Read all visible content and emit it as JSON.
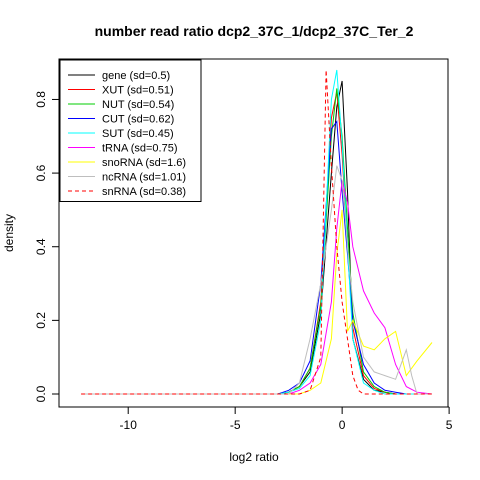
{
  "chart_data": {
    "type": "line",
    "title": "number read ratio dcp2_37C_1/dcp2_37C_Ter_2",
    "xlabel": "log2 ratio",
    "ylabel": "density",
    "xlim": [
      -12.3,
      4.2
    ],
    "ylim": [
      0,
      0.88
    ],
    "x_ticks": [
      -10,
      -5,
      0,
      5
    ],
    "x_tick_labels": [
      "-10",
      "-5",
      "0",
      "5"
    ],
    "y_ticks": [
      0.0,
      0.2,
      0.4,
      0.6,
      0.8
    ],
    "y_tick_labels": [
      "0.0",
      "0.2",
      "0.4",
      "0.6",
      "0.8"
    ],
    "legend_position": "top-left",
    "series": [
      {
        "name": "gene (sd=0.5)",
        "color": "#000000",
        "dash": false,
        "x": [
          -12.2,
          -3.0,
          -2.5,
          -2.0,
          -1.5,
          -1.0,
          -0.5,
          -0.25,
          0.0,
          0.25,
          0.5,
          1.0,
          1.5,
          2.0,
          2.5,
          3.0,
          3.5,
          4.2
        ],
        "y": [
          0.0,
          0.0,
          0.005,
          0.02,
          0.06,
          0.22,
          0.6,
          0.78,
          0.85,
          0.55,
          0.15,
          0.04,
          0.01,
          0.005,
          0.0,
          0.0,
          0.0,
          0.0
        ]
      },
      {
        "name": "XUT (sd=0.51)",
        "color": "#ff0000",
        "dash": false,
        "x": [
          -12.2,
          -3.0,
          -2.5,
          -2.0,
          -1.5,
          -1.0,
          -0.5,
          -0.25,
          0.0,
          0.25,
          0.5,
          1.0,
          1.5,
          2.0,
          2.5,
          3.0,
          4.2
        ],
        "y": [
          0.0,
          0.0,
          0.005,
          0.02,
          0.07,
          0.25,
          0.75,
          0.82,
          0.65,
          0.4,
          0.18,
          0.05,
          0.015,
          0.005,
          0.0,
          0.0,
          0.0
        ]
      },
      {
        "name": "NUT (sd=0.54)",
        "color": "#00cc00",
        "dash": false,
        "x": [
          -12.2,
          -3.0,
          -2.5,
          -2.0,
          -1.5,
          -1.0,
          -0.5,
          -0.25,
          0.0,
          0.25,
          0.5,
          1.0,
          1.5,
          2.0,
          2.5,
          3.0,
          4.2
        ],
        "y": [
          0.0,
          0.0,
          0.005,
          0.02,
          0.07,
          0.24,
          0.7,
          0.83,
          0.7,
          0.45,
          0.22,
          0.06,
          0.02,
          0.005,
          0.0,
          0.0,
          0.0
        ]
      },
      {
        "name": "CUT (sd=0.62)",
        "color": "#0000ff",
        "dash": false,
        "x": [
          -12.2,
          -3.0,
          -2.5,
          -2.0,
          -1.5,
          -1.0,
          -0.5,
          -0.25,
          0.0,
          0.25,
          0.5,
          1.0,
          1.5,
          2.0,
          2.5,
          3.0,
          4.2
        ],
        "y": [
          0.0,
          0.0,
          0.01,
          0.03,
          0.09,
          0.3,
          0.72,
          0.74,
          0.55,
          0.38,
          0.2,
          0.08,
          0.03,
          0.01,
          0.005,
          0.0,
          0.0
        ]
      },
      {
        "name": "SUT (sd=0.45)",
        "color": "#00ffff",
        "dash": false,
        "x": [
          -12.2,
          -3.0,
          -2.5,
          -2.0,
          -1.5,
          -1.0,
          -0.5,
          -0.25,
          0.0,
          0.25,
          0.5,
          1.0,
          1.5,
          2.0,
          2.5,
          3.0,
          4.2
        ],
        "y": [
          0.0,
          0.0,
          0.005,
          0.015,
          0.05,
          0.2,
          0.8,
          0.88,
          0.68,
          0.4,
          0.15,
          0.03,
          0.01,
          0.0,
          0.0,
          0.0,
          0.0
        ]
      },
      {
        "name": "tRNA (sd=0.75)",
        "color": "#ff00ff",
        "dash": false,
        "x": [
          -12.2,
          -3.0,
          -2.5,
          -2.0,
          -1.5,
          -1.0,
          -0.5,
          -0.25,
          0.0,
          0.25,
          0.5,
          1.0,
          1.5,
          2.0,
          2.5,
          3.0,
          3.5,
          4.2
        ],
        "y": [
          0.0,
          0.0,
          0.0,
          0.01,
          0.03,
          0.08,
          0.25,
          0.45,
          0.58,
          0.52,
          0.4,
          0.28,
          0.22,
          0.18,
          0.08,
          0.02,
          0.005,
          0.0
        ]
      },
      {
        "name": "snoRNA (sd=1.6)",
        "color": "#ffff00",
        "dash": false,
        "x": [
          -12.2,
          -2.0,
          -1.5,
          -1.0,
          -0.5,
          -0.25,
          0.0,
          0.25,
          0.5,
          1.0,
          1.5,
          2.0,
          2.5,
          3.0,
          3.5,
          4.2
        ],
        "y": [
          0.0,
          0.0,
          0.01,
          0.03,
          0.15,
          0.38,
          0.5,
          0.17,
          0.2,
          0.13,
          0.12,
          0.15,
          0.17,
          0.05,
          0.09,
          0.14
        ]
      },
      {
        "name": "ncRNA (sd=1.01)",
        "color": "#bebebe",
        "dash": false,
        "x": [
          -12.2,
          -2.5,
          -2.0,
          -1.5,
          -1.0,
          -0.5,
          -0.25,
          0.0,
          0.25,
          0.5,
          1.0,
          1.5,
          2.0,
          2.5,
          3.0,
          3.25,
          3.5,
          4.2
        ],
        "y": [
          0.0,
          0.0,
          0.03,
          0.15,
          0.3,
          0.5,
          0.62,
          0.58,
          0.4,
          0.25,
          0.1,
          0.06,
          0.05,
          0.04,
          0.12,
          0.05,
          0.0,
          0.0
        ]
      },
      {
        "name": "snRNA (sd=0.38)",
        "color": "#ff0000",
        "dash": true,
        "x": [
          -12.2,
          -2.0,
          -1.5,
          -1.0,
          -0.75,
          -0.5,
          -0.25,
          0.0,
          0.25,
          0.5,
          0.75,
          1.0,
          4.2
        ],
        "y": [
          0.0,
          0.0,
          0.01,
          0.1,
          0.88,
          0.62,
          0.4,
          0.25,
          0.15,
          0.05,
          0.01,
          0.0,
          0.0
        ]
      }
    ]
  }
}
